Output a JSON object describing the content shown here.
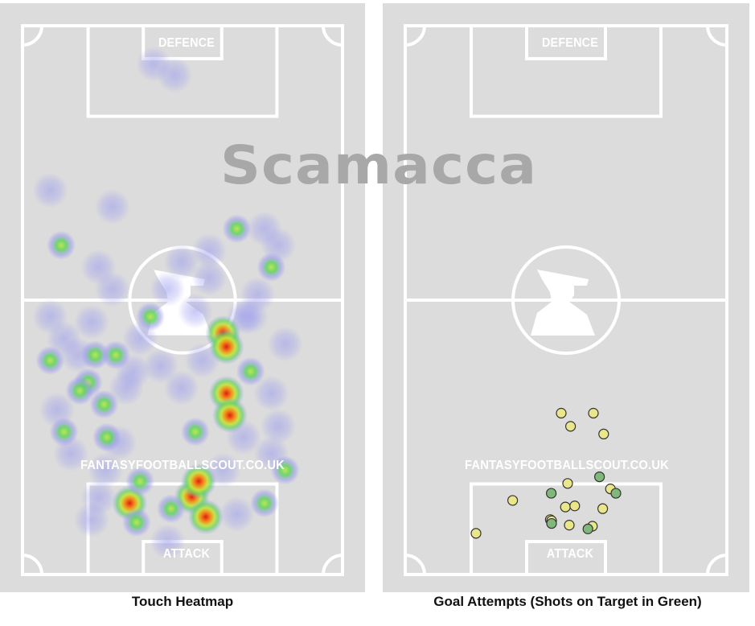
{
  "player_name": "Scamacca",
  "pitch": {
    "defence_label": "DEFENCE",
    "attack_label": "ATTACK",
    "watermark": "FANTASYFOOTBALLSCOUT.CO.UK"
  },
  "captions": {
    "left": "Touch Heatmap",
    "right": "Goal Attempts (Shots on Target in Green)"
  },
  "colors": {
    "pitch": "#dcdcdc",
    "lines": "#ffffff",
    "shot_on_target": "#7fb87a",
    "shot_off_target": "#e9e78a",
    "heat_low": "#9a9af0",
    "heat_mid": "#5fd25f",
    "heat_high": "#e11c12"
  },
  "chart_data": [
    {
      "type": "heatmap",
      "title": "Touch Heatmap",
      "coordinate_system": "pitch fraction: x 0=left touchline to 1=right touchline, y 0=defensive goal line to 1=attacking goal line",
      "hot_spots": [
        {
          "x": 0.245,
          "y": 0.858,
          "intensity": 0.98
        },
        {
          "x": 0.265,
          "y": 0.895,
          "intensity": 0.95
        },
        {
          "x": 0.255,
          "y": 0.83,
          "intensity": 0.85
        },
        {
          "x": 0.295,
          "y": 0.67,
          "intensity": 0.92
        },
        {
          "x": 0.3,
          "y": 0.71,
          "intensity": 0.8
        },
        {
          "x": 0.29,
          "y": 0.56,
          "intensity": 0.88
        },
        {
          "x": 0.295,
          "y": 0.585,
          "intensity": 0.8
        },
        {
          "x": 0.155,
          "y": 0.87,
          "intensity": 0.82
        },
        {
          "x": 0.165,
          "y": 0.905,
          "intensity": 0.72
        },
        {
          "x": 0.17,
          "y": 0.83,
          "intensity": 0.62
        },
        {
          "x": 0.118,
          "y": 0.69,
          "intensity": 0.6
        },
        {
          "x": 0.122,
          "y": 0.75,
          "intensity": 0.72
        },
        {
          "x": 0.33,
          "y": 0.63,
          "intensity": 0.6
        },
        {
          "x": 0.056,
          "y": 0.4,
          "intensity": 0.58
        },
        {
          "x": 0.095,
          "y": 0.65,
          "intensity": 0.55
        },
        {
          "x": 0.105,
          "y": 0.6,
          "intensity": 0.55
        },
        {
          "x": 0.083,
          "y": 0.665,
          "intensity": 0.55
        },
        {
          "x": 0.135,
          "y": 0.6,
          "intensity": 0.5
        },
        {
          "x": 0.185,
          "y": 0.53,
          "intensity": 0.45
        },
        {
          "x": 0.06,
          "y": 0.74,
          "intensity": 0.45
        },
        {
          "x": 0.25,
          "y": 0.74,
          "intensity": 0.45
        },
        {
          "x": 0.215,
          "y": 0.88,
          "intensity": 0.5
        },
        {
          "x": 0.31,
          "y": 0.37,
          "intensity": 0.42
        },
        {
          "x": 0.36,
          "y": 0.44,
          "intensity": 0.42
        },
        {
          "x": 0.04,
          "y": 0.61,
          "intensity": 0.4
        },
        {
          "x": 0.38,
          "y": 0.81,
          "intensity": 0.45
        },
        {
          "x": 0.35,
          "y": 0.87,
          "intensity": 0.4
        }
      ],
      "faint_spots": [
        {
          "x": 0.19,
          "y": 0.07
        },
        {
          "x": 0.22,
          "y": 0.09
        },
        {
          "x": 0.04,
          "y": 0.3
        },
        {
          "x": 0.13,
          "y": 0.33
        },
        {
          "x": 0.11,
          "y": 0.44
        },
        {
          "x": 0.13,
          "y": 0.48
        },
        {
          "x": 0.27,
          "y": 0.41
        },
        {
          "x": 0.27,
          "y": 0.46
        },
        {
          "x": 0.35,
          "y": 0.37
        },
        {
          "x": 0.37,
          "y": 0.4
        },
        {
          "x": 0.34,
          "y": 0.49
        },
        {
          "x": 0.32,
          "y": 0.53
        },
        {
          "x": 0.25,
          "y": 0.52
        },
        {
          "x": 0.21,
          "y": 0.48
        },
        {
          "x": 0.04,
          "y": 0.53
        },
        {
          "x": 0.06,
          "y": 0.57
        },
        {
          "x": 0.1,
          "y": 0.54
        },
        {
          "x": 0.17,
          "y": 0.57
        },
        {
          "x": 0.2,
          "y": 0.62
        },
        {
          "x": 0.15,
          "y": 0.66
        },
        {
          "x": 0.23,
          "y": 0.66
        },
        {
          "x": 0.26,
          "y": 0.61
        },
        {
          "x": 0.05,
          "y": 0.7
        },
        {
          "x": 0.07,
          "y": 0.78
        },
        {
          "x": 0.11,
          "y": 0.86
        },
        {
          "x": 0.32,
          "y": 0.75
        },
        {
          "x": 0.36,
          "y": 0.67
        },
        {
          "x": 0.38,
          "y": 0.58
        },
        {
          "x": 0.36,
          "y": 0.78
        },
        {
          "x": 0.31,
          "y": 0.89
        },
        {
          "x": 0.21,
          "y": 0.94
        },
        {
          "x": 0.1,
          "y": 0.9
        },
        {
          "x": 0.29,
          "y": 0.81
        },
        {
          "x": 0.14,
          "y": 0.76
        },
        {
          "x": 0.23,
          "y": 0.43
        },
        {
          "x": 0.33,
          "y": 0.53
        },
        {
          "x": 0.37,
          "y": 0.73
        },
        {
          "x": 0.08,
          "y": 0.6
        },
        {
          "x": 0.16,
          "y": 0.63
        },
        {
          "x": 0.12,
          "y": 0.81
        }
      ]
    },
    {
      "type": "scatter",
      "title": "Goal Attempts (Shots on Target in Green)",
      "coordinate_system": "pitch fraction: x 0=left touchline to 1=right touchline, y 0=defensive goal line to 1=attacking goal line",
      "series": [
        {
          "name": "Shots on Target",
          "color": "#7fb87a",
          "points": [
            [
              0.454,
              0.852
            ],
            [
              0.604,
              0.822
            ],
            [
              0.655,
              0.852
            ],
            [
              0.455,
              0.907
            ],
            [
              0.568,
              0.917
            ]
          ]
        },
        {
          "name": "Shots",
          "color": "#e9e78a",
          "points": [
            [
              0.485,
              0.706
            ],
            [
              0.585,
              0.706
            ],
            [
              0.514,
              0.73
            ],
            [
              0.617,
              0.744
            ],
            [
              0.505,
              0.834
            ],
            [
              0.638,
              0.844
            ],
            [
              0.334,
              0.865
            ],
            [
              0.498,
              0.877
            ],
            [
              0.527,
              0.875
            ],
            [
              0.614,
              0.88
            ],
            [
              0.451,
              0.9
            ],
            [
              0.455,
              0.902
            ],
            [
              0.51,
              0.91
            ],
            [
              0.582,
              0.912
            ],
            [
              0.22,
              0.925
            ]
          ]
        }
      ]
    }
  ]
}
